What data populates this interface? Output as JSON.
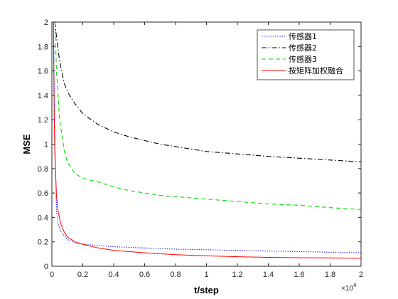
{
  "chart_data": {
    "type": "line",
    "title": "",
    "xlabel": "t/step",
    "ylabel": "MSE",
    "x_multiplier_label": "×10",
    "x_multiplier_exponent": "4",
    "xlim": [
      0,
      2
    ],
    "ylim": [
      0,
      2
    ],
    "xticks": [
      "0",
      "0.2",
      "0.4",
      "0.6",
      "0.8",
      "1",
      "1.2",
      "1.4",
      "1.6",
      "1.8",
      "2"
    ],
    "yticks": [
      "0",
      "0.2",
      "0.4",
      "0.6",
      "0.8",
      "1",
      "1.2",
      "1.4",
      "1.6",
      "1.8",
      "2"
    ],
    "grid": false,
    "legend_position": "top-right",
    "series": [
      {
        "name": "传感器1",
        "color": "#0000ff",
        "style": "dotted",
        "x": [
          0.01,
          0.02,
          0.03,
          0.04,
          0.06,
          0.08,
          0.1,
          0.15,
          0.2,
          0.3,
          0.4,
          0.6,
          0.8,
          1.0,
          1.2,
          1.4,
          1.6,
          1.8,
          2.0
        ],
        "y": [
          2.0,
          1.0,
          0.45,
          0.35,
          0.28,
          0.25,
          0.22,
          0.19,
          0.18,
          0.17,
          0.16,
          0.15,
          0.14,
          0.135,
          0.13,
          0.125,
          0.12,
          0.115,
          0.11
        ]
      },
      {
        "name": "传感器2",
        "color": "#000000",
        "style": "dashdot",
        "x": [
          0.02,
          0.03,
          0.05,
          0.08,
          0.1,
          0.15,
          0.2,
          0.3,
          0.4,
          0.5,
          0.6,
          0.7,
          0.8,
          0.9,
          1.0,
          1.2,
          1.4,
          1.6,
          1.8,
          2.0
        ],
        "y": [
          2.0,
          1.88,
          1.68,
          1.5,
          1.43,
          1.33,
          1.25,
          1.16,
          1.1,
          1.06,
          1.03,
          1.0,
          0.98,
          0.96,
          0.94,
          0.92,
          0.9,
          0.885,
          0.87,
          0.855
        ]
      },
      {
        "name": "传感器3",
        "color": "#00dd00",
        "style": "dashed",
        "x": [
          0.02,
          0.03,
          0.05,
          0.08,
          0.1,
          0.15,
          0.2,
          0.3,
          0.4,
          0.5,
          0.6,
          0.7,
          0.8,
          1.0,
          1.2,
          1.4,
          1.6,
          1.8,
          2.0
        ],
        "y": [
          2.0,
          1.6,
          1.2,
          0.95,
          0.85,
          0.76,
          0.72,
          0.69,
          0.65,
          0.62,
          0.6,
          0.58,
          0.57,
          0.55,
          0.53,
          0.51,
          0.5,
          0.48,
          0.465
        ]
      },
      {
        "name": "按矩阵加权融合",
        "color": "#ff0000",
        "style": "solid",
        "x": [
          0.01,
          0.015,
          0.02,
          0.03,
          0.04,
          0.06,
          0.08,
          0.1,
          0.15,
          0.2,
          0.3,
          0.4,
          0.5,
          0.6,
          0.8,
          1.0,
          1.2,
          1.4,
          1.6,
          1.8,
          2.0
        ],
        "y": [
          2.0,
          1.2,
          0.9,
          0.58,
          0.45,
          0.34,
          0.28,
          0.24,
          0.2,
          0.18,
          0.15,
          0.13,
          0.12,
          0.11,
          0.095,
          0.085,
          0.078,
          0.073,
          0.07,
          0.068,
          0.066
        ]
      }
    ]
  }
}
